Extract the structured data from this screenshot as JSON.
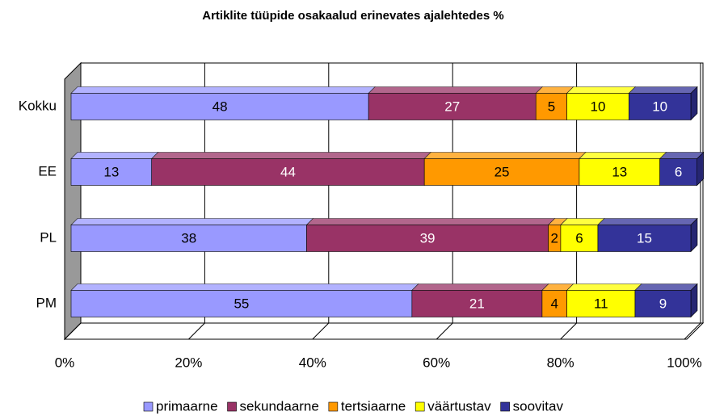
{
  "chart_data": {
    "type": "bar",
    "orientation": "horizontal",
    "stacked": true,
    "title": "Artiklite tüüpide osakaalud erinevates ajalehtedes %",
    "categories": [
      "Kokku",
      "EE",
      "PL",
      "PM"
    ],
    "series": [
      {
        "name": "primaarne",
        "color": "#9999ff",
        "values": [
          48,
          13,
          38,
          55
        ]
      },
      {
        "name": "sekundaarne",
        "color": "#993366",
        "values": [
          27,
          44,
          39,
          21
        ]
      },
      {
        "name": "tertsiaarne",
        "color": "#ff9900",
        "values": [
          5,
          25,
          2,
          4
        ]
      },
      {
        "name": "väärtustav",
        "color": "#ffff00",
        "values": [
          10,
          13,
          6,
          11
        ]
      },
      {
        "name": "soovitav",
        "color": "#333399",
        "values": [
          10,
          6,
          15,
          9
        ]
      }
    ],
    "xlim": [
      0,
      100
    ],
    "xticks": [
      {
        "value": 0,
        "label": "0%"
      },
      {
        "value": 20,
        "label": "20%"
      },
      {
        "value": 40,
        "label": "40%"
      },
      {
        "value": 60,
        "label": "60%"
      },
      {
        "value": 80,
        "label": "80%"
      },
      {
        "value": 100,
        "label": "100%"
      }
    ],
    "grid": true,
    "legend": "bottom"
  }
}
